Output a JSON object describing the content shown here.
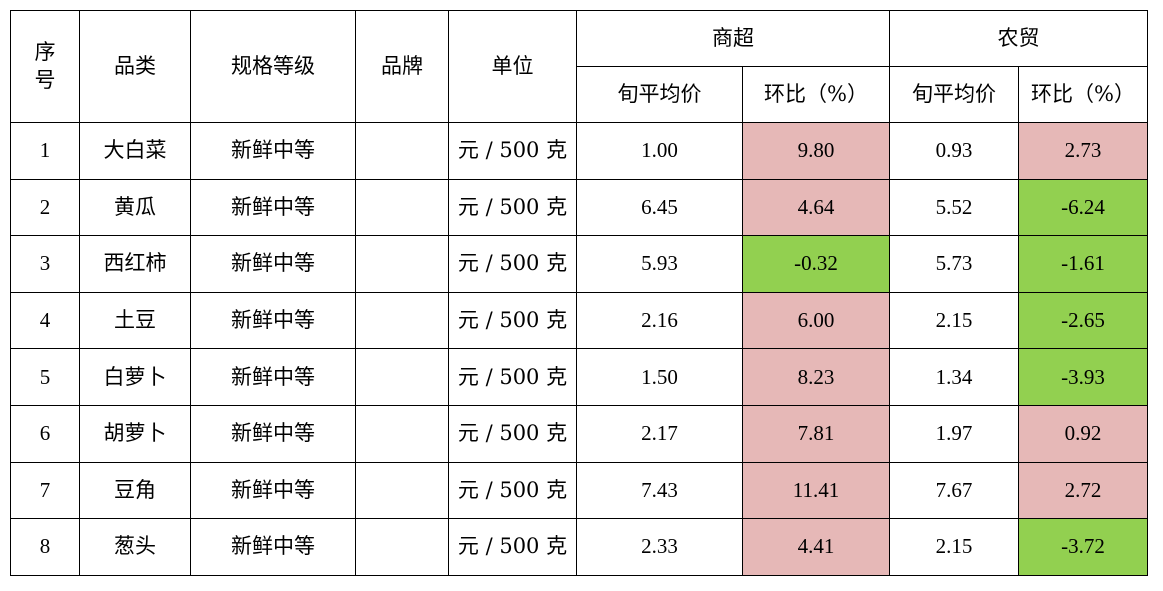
{
  "headers": {
    "seq_line1": "序",
    "seq_line2": "号",
    "category": "品类",
    "grade": "规格等级",
    "brand": "品牌",
    "unit": "单位",
    "supermarket": "商超",
    "farmers_market": "农贸",
    "avg_price": "旬平均价",
    "change_pct": "环比（%）"
  },
  "colors": {
    "increase": "#e6b8b7",
    "decrease": "#92d050"
  },
  "rows": [
    {
      "seq": "1",
      "category": "大白菜",
      "grade": "新鲜中等",
      "brand": "",
      "unit": "元 / 500 克",
      "sm_price": "1.00",
      "sm_change": "9.80",
      "fm_price": "0.93",
      "fm_change": "2.73"
    },
    {
      "seq": "2",
      "category": "黄瓜",
      "grade": "新鲜中等",
      "brand": "",
      "unit": "元 / 500 克",
      "sm_price": "6.45",
      "sm_change": "4.64",
      "fm_price": "5.52",
      "fm_change": "-6.24"
    },
    {
      "seq": "3",
      "category": "西红柿",
      "grade": "新鲜中等",
      "brand": "",
      "unit": "元 / 500 克",
      "sm_price": "5.93",
      "sm_change": "-0.32",
      "fm_price": "5.73",
      "fm_change": "-1.61"
    },
    {
      "seq": "4",
      "category": "土豆",
      "grade": "新鲜中等",
      "brand": "",
      "unit": "元 / 500 克",
      "sm_price": "2.16",
      "sm_change": "6.00",
      "fm_price": "2.15",
      "fm_change": "-2.65"
    },
    {
      "seq": "5",
      "category": "白萝卜",
      "grade": "新鲜中等",
      "brand": "",
      "unit": "元 / 500 克",
      "sm_price": "1.50",
      "sm_change": "8.23",
      "fm_price": "1.34",
      "fm_change": "-3.93"
    },
    {
      "seq": "6",
      "category": "胡萝卜",
      "grade": "新鲜中等",
      "brand": "",
      "unit": "元 / 500 克",
      "sm_price": "2.17",
      "sm_change": "7.81",
      "fm_price": "1.97",
      "fm_change": "0.92"
    },
    {
      "seq": "7",
      "category": "豆角",
      "grade": "新鲜中等",
      "brand": "",
      "unit": "元 / 500 克",
      "sm_price": "7.43",
      "sm_change": "11.41",
      "fm_price": "7.67",
      "fm_change": "2.72"
    },
    {
      "seq": "8",
      "category": "葱头",
      "grade": "新鲜中等",
      "brand": "",
      "unit": "元 / 500 克",
      "sm_price": "2.33",
      "sm_change": "4.41",
      "fm_price": "2.15",
      "fm_change": "-3.72"
    }
  ]
}
